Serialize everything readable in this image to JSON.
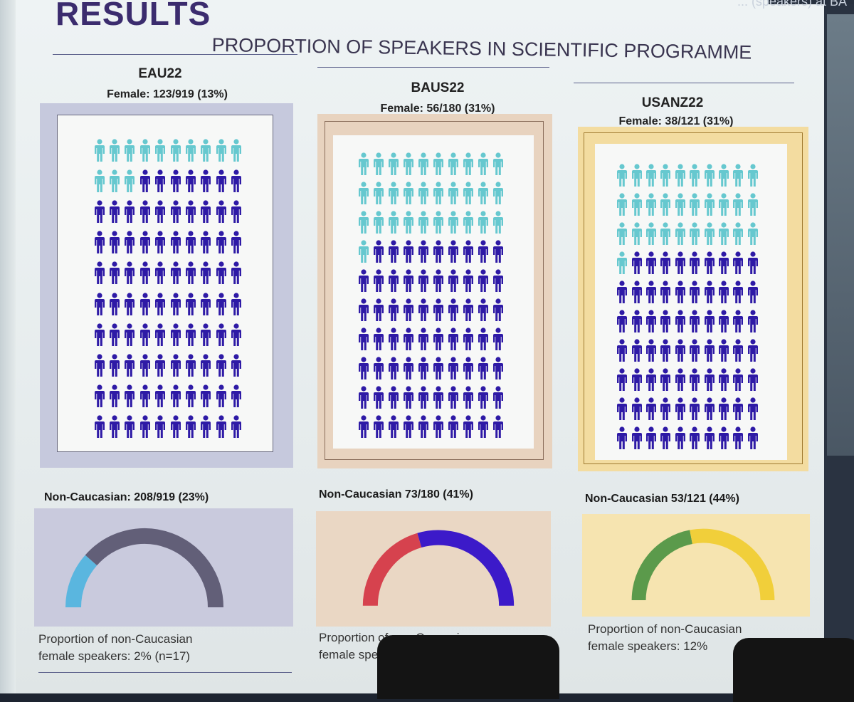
{
  "slide": {
    "title": "RESULTS",
    "subtitle": "PROPORTION OF SPEAKERS IN SCIENTIFIC PROGRAMME",
    "header_fragment": "... (speakers) at BA"
  },
  "colors": {
    "female_icon": "#66c8cf",
    "male_icon": "#2e1aa6"
  },
  "icon": "person-icon",
  "panels": [
    {
      "conference": "EAU22",
      "female_label": "Female: 123/919 (13%)",
      "female_proportion": 0.13,
      "icons_per_row": 10,
      "rows": 10,
      "noncaucasian_label": "Non-Caucasian: 208/919 (23%)",
      "gauge": {
        "value": 0.23,
        "first_color": "#5ab6df",
        "rest_color": "#625f78"
      },
      "caption": [
        "Proportion of non-Caucasian",
        "female speakers: 2% (n=17)"
      ],
      "frame_color": "#c6c9dd",
      "gauge_bg": "#c9cadd"
    },
    {
      "conference": "BAUS22",
      "female_label": "Female: 56/180 (31%)",
      "female_proportion": 0.31,
      "icons_per_row": 10,
      "rows": 10,
      "noncaucasian_label": "Non-Caucasian 73/180 (41%)",
      "gauge": {
        "value": 0.41,
        "first_color": "#d6424e",
        "rest_color": "#3c1ac9"
      },
      "caption": [
        "Proportion of non-Caucasian",
        "female speakers"
      ],
      "frame_color": "#e8d3bf",
      "gauge_bg": "#ead7c4"
    },
    {
      "conference": "USANZ22",
      "female_label": "Female: 38/121 (31%)",
      "female_proportion": 0.31,
      "icons_per_row": 10,
      "rows": 10,
      "noncaucasian_label": "Non-Caucasian 53/121 (44%)",
      "gauge": {
        "value": 0.44,
        "first_color": "#5b9a4b",
        "rest_color": "#f1cf3a"
      },
      "caption": [
        "Proportion of non-Caucasian",
        "female speakers: 12%"
      ],
      "frame_color": "#f3dca0",
      "gauge_bg": "#f6e4b0"
    }
  ]
}
